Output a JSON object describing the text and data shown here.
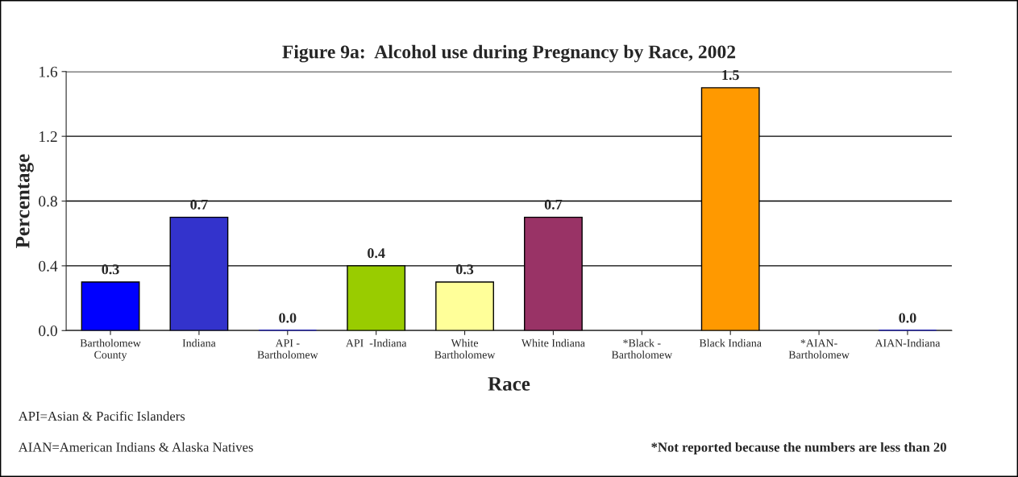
{
  "chart_data": {
    "type": "bar",
    "title": "Figure 9a:  Alcohol use during Pregnancy by Race, 2002",
    "xlabel": "Race",
    "ylabel": "Percentage",
    "categories": [
      "Bartholomew\nCounty",
      "Indiana",
      "API -\nBartholomew",
      "API  -Indiana",
      "White\nBartholomew",
      "White Indiana",
      "*Black -\nBartholomew",
      "Black Indiana",
      "*AIAN-\nBartholomew",
      "AIAN-Indiana"
    ],
    "values": [
      0.3,
      0.7,
      0.0,
      0.4,
      0.3,
      0.7,
      null,
      1.5,
      null,
      0.0
    ],
    "colors": [
      "#0000ff",
      "#3333cc",
      "#0000ff",
      "#99cc00",
      "#ffff99",
      "#993366",
      "#0000ff",
      "#ff9900",
      "#0000ff",
      "#0000ff"
    ],
    "value_labels": [
      "0.3",
      "0.7",
      "0.0",
      "0.4",
      "0.3",
      "0.7",
      null,
      "1.5",
      null,
      "0.0"
    ],
    "ylim": [
      0,
      1.6
    ],
    "yticks": [
      "0.0",
      "0.4",
      "0.8",
      "1.2",
      "1.6"
    ],
    "grid": "y",
    "legend": false,
    "annotations": [
      "API=Asian & Pacific Islanders",
      "AIAN=American Indians & Alaska Natives",
      "*Not reported because the numbers are less than 20"
    ]
  }
}
